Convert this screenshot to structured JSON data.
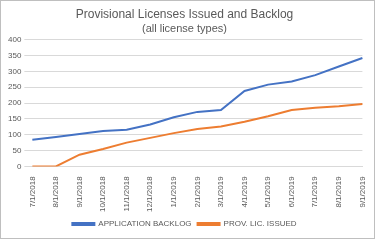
{
  "chart_data": {
    "type": "line",
    "title": "Provisional Licenses Issued and Backlog",
    "subtitle": "(all license types)",
    "categories": [
      "7/1/2018",
      "8/1/2018",
      "9/1/2018",
      "10/1/2018",
      "11/1/2018",
      "12/1/2018",
      "1/1/2019",
      "2/1/2019",
      "3/1/2019",
      "4/1/2019",
      "5/1/2019",
      "6/1/2019",
      "7/1/2019",
      "8/1/2019",
      "9/1/2019"
    ],
    "series": [
      {
        "name": "APPLICATION BACKLOG",
        "color": "#4472c4",
        "values": [
          84,
          93,
          102,
          112,
          116,
          132,
          155,
          172,
          178,
          238,
          258,
          268,
          288,
          315,
          342
        ]
      },
      {
        "name": "PROV. LIC. ISSUED",
        "color": "#ed7d31",
        "values": [
          0,
          0,
          37,
          55,
          75,
          90,
          105,
          118,
          126,
          141,
          158,
          178,
          185,
          190,
          197
        ]
      }
    ],
    "ylim": [
      0,
      400
    ],
    "yticks": [
      0,
      50,
      100,
      150,
      200,
      250,
      300,
      350,
      400
    ],
    "grid": true,
    "legend": "bottom"
  }
}
